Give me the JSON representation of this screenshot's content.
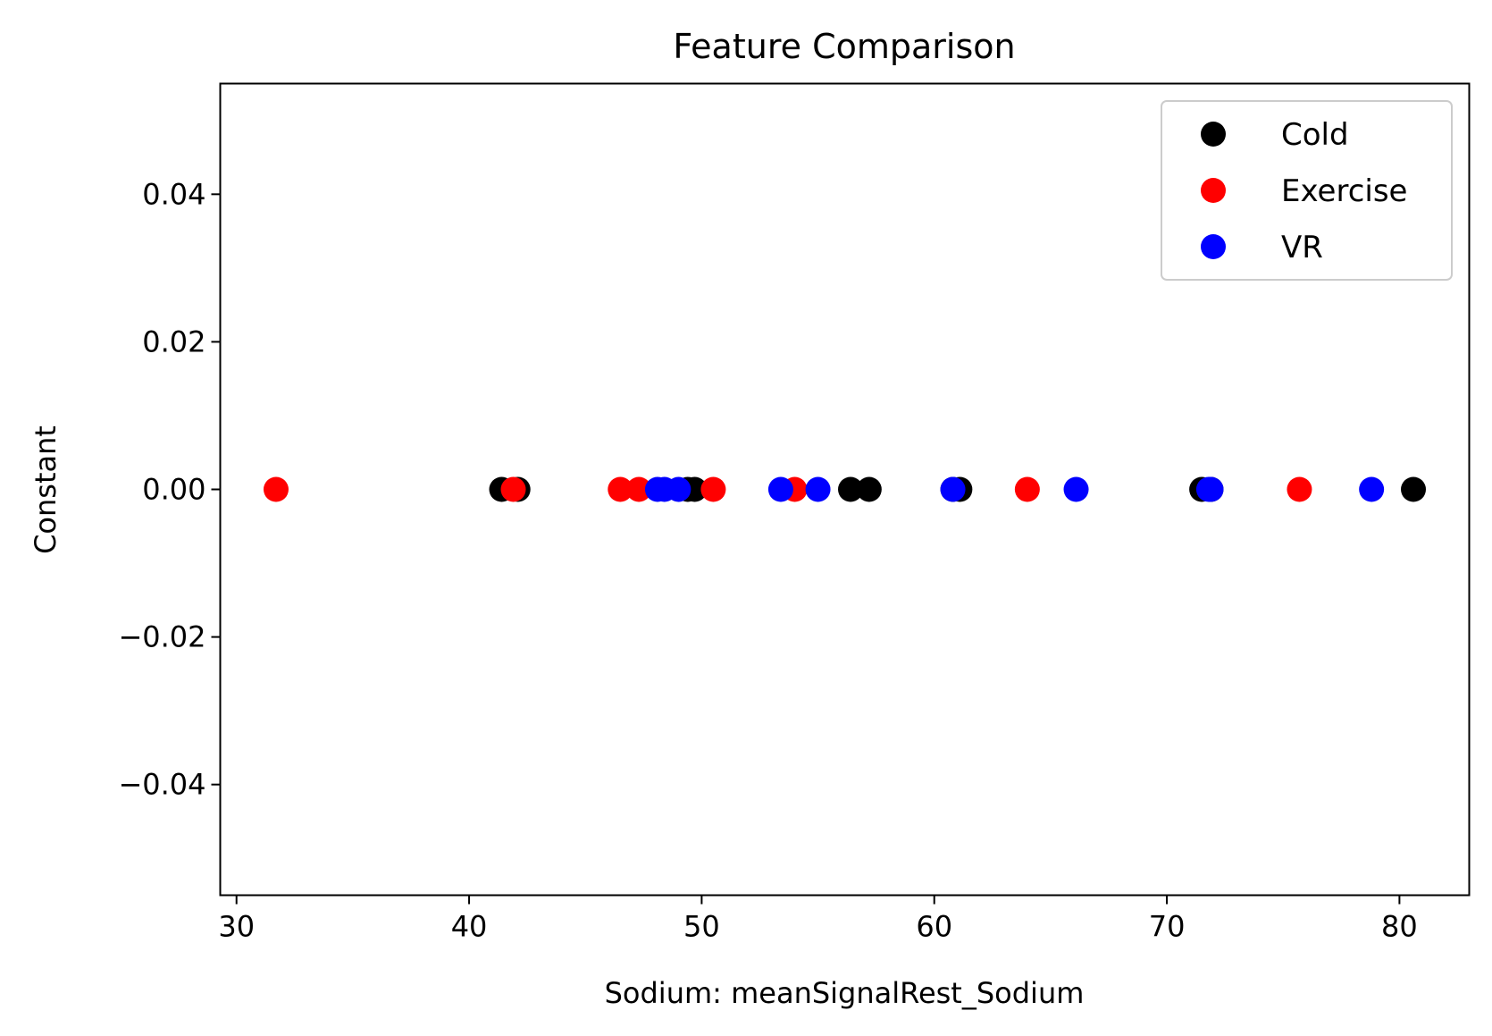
{
  "chart_data": {
    "type": "scatter",
    "title": "Feature Comparison",
    "xlabel": "Sodium: meanSignalRest_Sodium",
    "ylabel": "Constant",
    "xlim": [
      29.3,
      83.0
    ],
    "ylim": [
      -0.055,
      0.055
    ],
    "x_ticks": [
      30,
      40,
      50,
      60,
      70,
      80
    ],
    "x_tick_labels": [
      "30",
      "40",
      "50",
      "60",
      "70",
      "80"
    ],
    "y_ticks": [
      0.04,
      0.02,
      0.0,
      -0.02,
      -0.04
    ],
    "y_tick_labels": [
      "0.04",
      "0.02",
      "0.00",
      "−0.02",
      "−0.04"
    ],
    "grid": false,
    "legend_position": "top-right",
    "series": [
      {
        "name": "Cold",
        "color": "#000000",
        "x": [
          41.4,
          42.1,
          49.4,
          49.7,
          56.4,
          57.2,
          60.8,
          61.1,
          71.5,
          71.9,
          80.6
        ],
        "y": [
          0,
          0,
          0,
          0,
          0,
          0,
          0,
          0,
          0,
          0,
          0
        ]
      },
      {
        "name": "Exercise",
        "color": "#ff0000",
        "x": [
          31.7,
          41.9,
          46.5,
          47.3,
          50.5,
          54.0,
          64.0,
          75.7
        ],
        "y": [
          0,
          0,
          0,
          0,
          0,
          0,
          0,
          0
        ]
      },
      {
        "name": "VR",
        "color": "#0000ff",
        "x": [
          48.1,
          48.4,
          49.0,
          53.4,
          55.0,
          60.8,
          66.1,
          71.8,
          71.9,
          78.8
        ],
        "y": [
          0,
          0,
          0,
          0,
          0,
          0,
          0,
          0,
          0,
          0
        ]
      }
    ]
  }
}
